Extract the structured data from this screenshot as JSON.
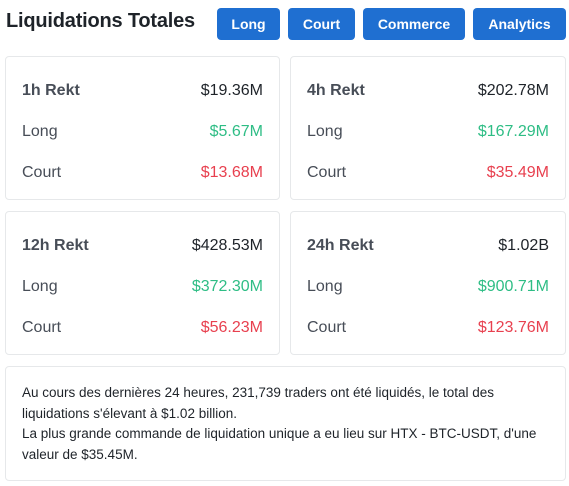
{
  "header": {
    "title": "Liquidations Totales",
    "buttons": [
      "Long",
      "Court",
      "Commerce",
      "Analytics"
    ]
  },
  "cards": [
    {
      "period": "1h Rekt",
      "total": "$19.36M",
      "long_label": "Long",
      "long": "$5.67M",
      "court_label": "Court",
      "court": "$13.68M"
    },
    {
      "period": "4h Rekt",
      "total": "$202.78M",
      "long_label": "Long",
      "long": "$167.29M",
      "court_label": "Court",
      "court": "$35.49M"
    },
    {
      "period": "12h Rekt",
      "total": "$428.53M",
      "long_label": "Long",
      "long": "$372.30M",
      "court_label": "Court",
      "court": "$56.23M"
    },
    {
      "period": "24h Rekt",
      "total": "$1.02B",
      "long_label": "Long",
      "long": "$900.71M",
      "court_label": "Court",
      "court": "$123.76M"
    }
  ],
  "summary": {
    "line1": "Au cours des dernières 24 heures, 231,739 traders ont été liquidés, le total des liquidations s'élevant à $1.02 billion.",
    "line2": "La plus grande commande de liquidation unique a eu lieu sur HTX - BTC-USDT, d'une valeur de $35.45M."
  },
  "colors": {
    "accent": "#1f6fd1",
    "long": "#2ebd85",
    "court": "#e8404f"
  }
}
